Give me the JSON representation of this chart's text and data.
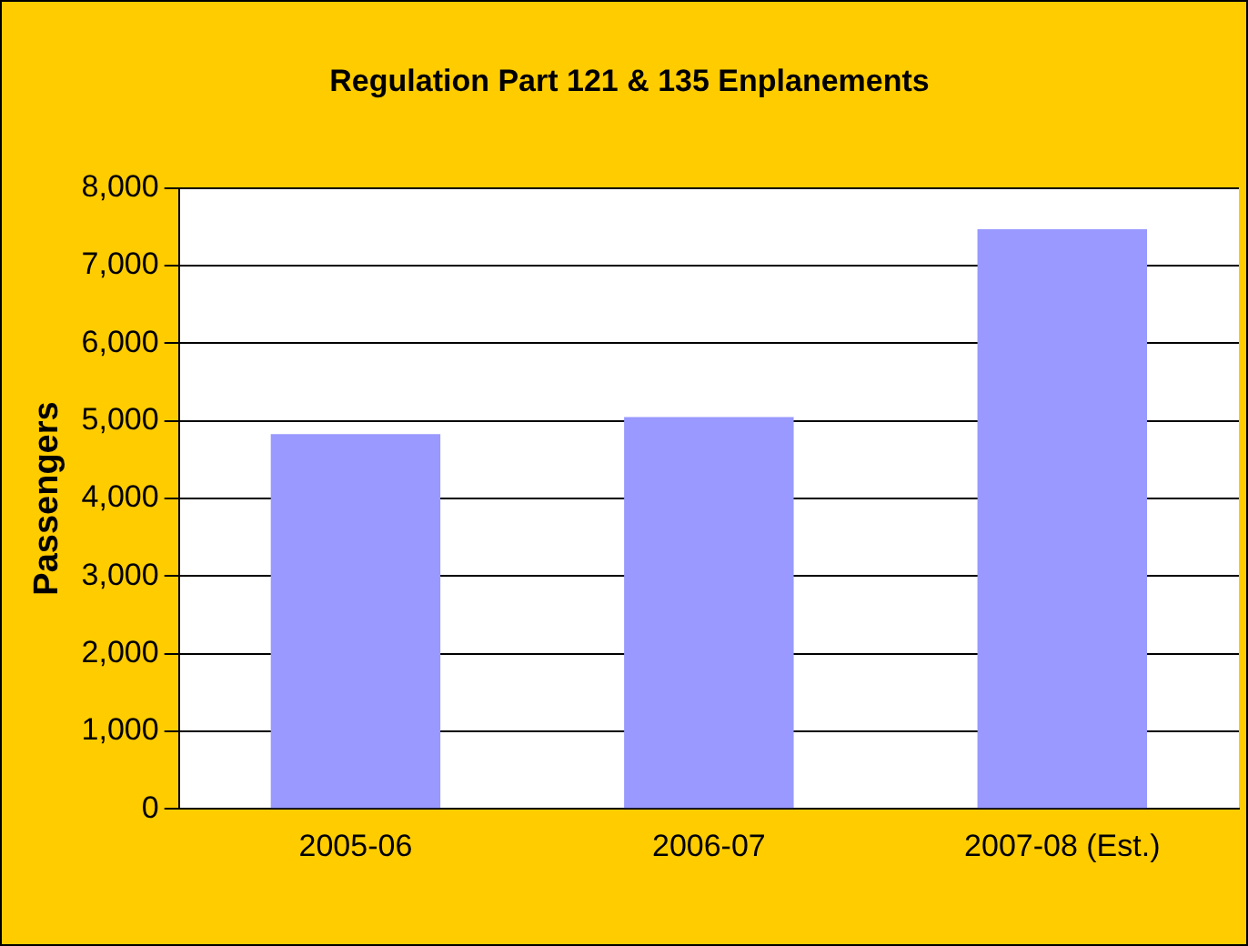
{
  "chart_data": {
    "type": "bar",
    "title": "Regulation Part 121 & 135 Enplanements",
    "ylabel": "Passengers",
    "categories": [
      "2005-06",
      "2006-07",
      "2007-08 (Est.)"
    ],
    "values": [
      4830,
      5050,
      7470
    ],
    "color": "#9999ff",
    "ylim": [
      0,
      8000
    ],
    "yticks": [
      {
        "value": 0,
        "label": "0"
      },
      {
        "value": 1000,
        "label": "1,000"
      },
      {
        "value": 2000,
        "label": "2,000"
      },
      {
        "value": 3000,
        "label": "3,000"
      },
      {
        "value": 4000,
        "label": "4,000"
      },
      {
        "value": 5000,
        "label": "5,000"
      },
      {
        "value": 6000,
        "label": "6,000"
      },
      {
        "value": 7000,
        "label": "7,000"
      },
      {
        "value": 8000,
        "label": "8,000"
      }
    ],
    "grid": "y"
  }
}
